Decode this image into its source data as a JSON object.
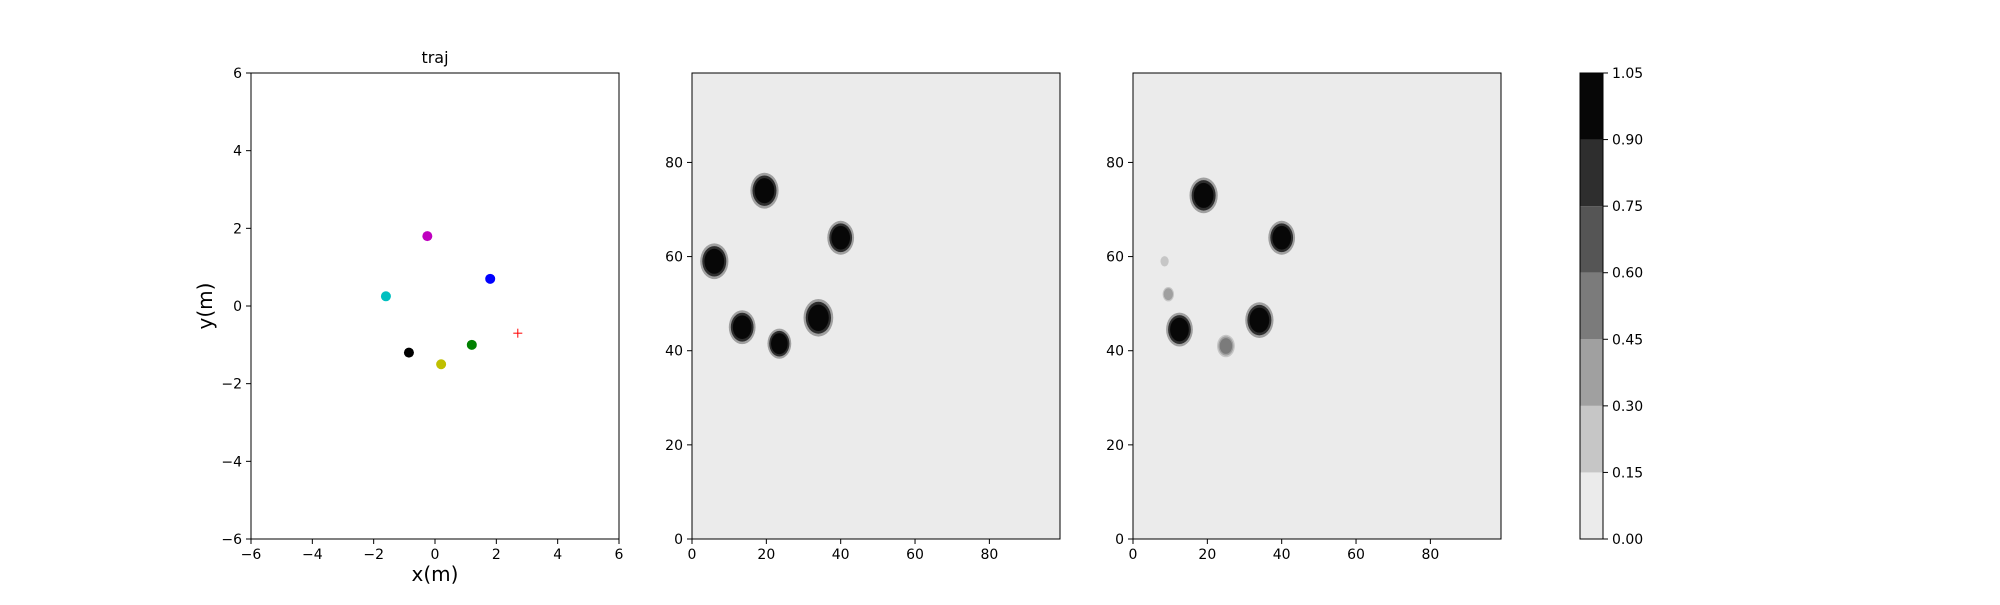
{
  "chart_data": [
    {
      "type": "scatter",
      "title": "traj",
      "xlabel": "x(m)",
      "ylabel": "y(m)",
      "xlim": [
        -6,
        6
      ],
      "ylim": [
        -6,
        6
      ],
      "xticks": [
        "−6",
        "−4",
        "−2",
        "0",
        "2",
        "4",
        "6"
      ],
      "yticks": [
        "−6",
        "−4",
        "−2",
        "0",
        "2",
        "4",
        "6"
      ],
      "grid": false,
      "points": [
        {
          "x": -0.25,
          "y": 1.8,
          "color": "#bf00bf",
          "marker": "dot"
        },
        {
          "x": 1.8,
          "y": 0.7,
          "color": "#0000ff",
          "marker": "dot"
        },
        {
          "x": -1.6,
          "y": 0.25,
          "color": "#00bfbf",
          "marker": "dot"
        },
        {
          "x": 1.2,
          "y": -1.0,
          "color": "#008000",
          "marker": "dot"
        },
        {
          "x": -0.85,
          "y": -1.2,
          "color": "#000000",
          "marker": "dot"
        },
        {
          "x": 0.2,
          "y": -1.5,
          "color": "#bfbf00",
          "marker": "dot"
        },
        {
          "x": 2.7,
          "y": -0.7,
          "color": "#ff0000",
          "marker": "plus"
        }
      ]
    },
    {
      "type": "heatmap",
      "xlim": [
        0,
        99
      ],
      "ylim": [
        0,
        99
      ],
      "xticks": [
        "0",
        "20",
        "40",
        "60",
        "80"
      ],
      "yticks": [
        "0",
        "20",
        "40",
        "60",
        "80"
      ],
      "background_value": 0.05,
      "blobs": [
        {
          "x": 19.5,
          "y": 74,
          "r": 3.8,
          "value": 1.0
        },
        {
          "x": 6,
          "y": 59,
          "r": 3.8,
          "value": 1.0
        },
        {
          "x": 40,
          "y": 64,
          "r": 3.6,
          "value": 1.0
        },
        {
          "x": 13.5,
          "y": 45,
          "r": 3.6,
          "value": 1.0
        },
        {
          "x": 23.5,
          "y": 41.5,
          "r": 3.2,
          "value": 1.0
        },
        {
          "x": 34,
          "y": 47,
          "r": 4.0,
          "value": 1.0
        }
      ]
    },
    {
      "type": "heatmap",
      "xlim": [
        0,
        99
      ],
      "ylim": [
        0,
        99
      ],
      "xticks": [
        "0",
        "20",
        "40",
        "60",
        "80"
      ],
      "yticks": [
        "0",
        "20",
        "40",
        "60",
        "80"
      ],
      "background_value": 0.05,
      "blobs": [
        {
          "x": 19,
          "y": 73,
          "r": 3.8,
          "value": 1.0
        },
        {
          "x": 40,
          "y": 64,
          "r": 3.6,
          "value": 1.0
        },
        {
          "x": 12.5,
          "y": 44.5,
          "r": 3.6,
          "value": 1.0
        },
        {
          "x": 34,
          "y": 46.5,
          "r": 3.8,
          "value": 1.0
        },
        {
          "x": 25,
          "y": 41,
          "r": 2.4,
          "value": 0.45
        },
        {
          "x": 9.5,
          "y": 52,
          "r": 1.8,
          "value": 0.35
        },
        {
          "x": 8.5,
          "y": 59,
          "r": 1.3,
          "value": 0.22
        }
      ]
    }
  ],
  "colorbar": {
    "ticks": [
      "0.00",
      "0.15",
      "0.30",
      "0.45",
      "0.60",
      "0.75",
      "0.90",
      "1.05"
    ],
    "levels": [
      0,
      0.15,
      0.3,
      0.45,
      0.6,
      0.75,
      0.9,
      1.05
    ],
    "colors": [
      "#ebebeb",
      "#c6c6c6",
      "#a0a0a0",
      "#7b7b7b",
      "#555555",
      "#2e2e2e",
      "#070707"
    ]
  }
}
